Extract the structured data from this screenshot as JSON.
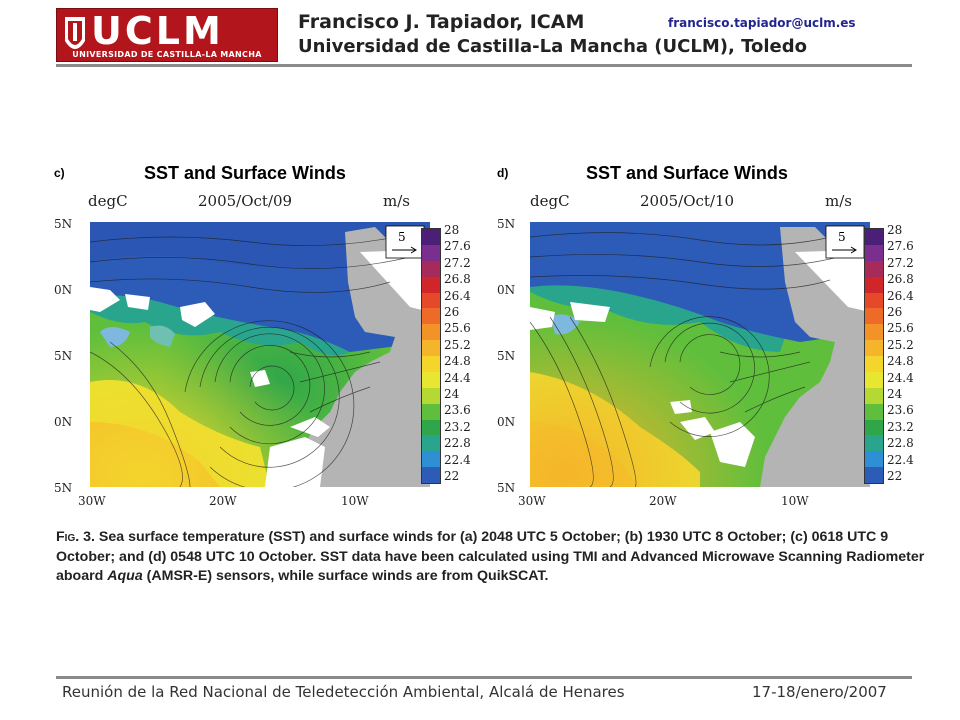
{
  "header": {
    "logo_big": "UCLM",
    "logo_small": "UNIVERSIDAD DE CASTILLA-LA MANCHA",
    "author": "Francisco J. Tapiador, ICAM",
    "email": "francisco.tapiador@uclm.es",
    "university": "Universidad de Castilla-La Mancha (UCLM), Toledo"
  },
  "figure": {
    "panels": [
      {
        "letter": "c)",
        "title": "SST and Surface Winds",
        "unit_left": "degC",
        "date": "2005/Oct/09",
        "unit_right": "m/s",
        "vector_ref": "5"
      },
      {
        "letter": "d)",
        "title": "SST and Surface Winds",
        "unit_left": "degC",
        "date": "2005/Oct/10",
        "unit_right": "m/s",
        "vector_ref": "5"
      }
    ],
    "lat_labels": [
      "5N",
      "0N",
      "5N",
      "0N",
      "5N"
    ],
    "lon_labels": [
      "30W",
      "20W",
      "10W"
    ],
    "colorbar_labels": [
      "28",
      "27.6",
      "27.2",
      "26.8",
      "26.4",
      "26",
      "25.6",
      "25.2",
      "24.8",
      "24.4",
      "24",
      "23.6",
      "23.2",
      "22.8",
      "22.4",
      "22"
    ],
    "colorbar_colors": [
      "#4b1f78",
      "#7a2f8e",
      "#a62a5a",
      "#d0262a",
      "#e6482a",
      "#ee6a28",
      "#f39327",
      "#f5b52a",
      "#f3d52c",
      "#e8e630",
      "#b6d832",
      "#5fbf3c",
      "#2fa64a",
      "#29a58e",
      "#2f8fd4",
      "#2d5bb8"
    ]
  },
  "caption": {
    "fig_label": "Fig. 3.",
    "text1": " Sea surface temperature (SST) and surface winds for (a) 2048 UTC 5 October; (b) 1930 UTC 8 October; (c) 0618 UTC 9 October; and (d) 0548 UTC 10 October. SST data have been calculated using TMI and Advanced Microwave Scanning Radiometer aboard ",
    "italic": "Aqua",
    "text2": " (AMSR-E) sensors, while surface winds are from QuikSCAT."
  },
  "footer": {
    "left": "Reunión de la Red Nacional de Teledetección Ambiental, Alcalá de Henares",
    "right": "17-18/enero/2007"
  },
  "colors": {
    "brand_red": "#b2151b",
    "email_blue": "#23258f",
    "rule_gray": "#8a8a8a",
    "land_gray": "#b4b4b4"
  }
}
